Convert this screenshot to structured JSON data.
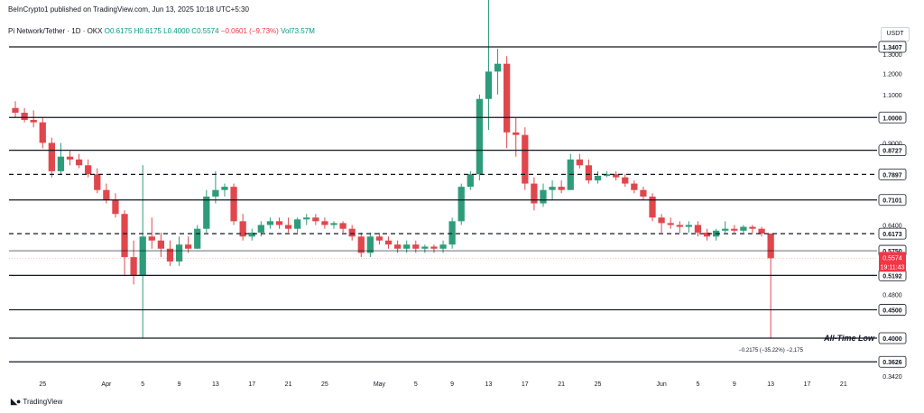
{
  "header": {
    "publisher": "BeInCrypto1 published on TradingView.com, Jun 13, 2025 10:18 UTC+5:30"
  },
  "symbol": {
    "name": "Pi Network/Tether · 1D · OKX",
    "open": "O0.6175",
    "high": "H0.6175",
    "low": "L0.4000",
    "close": "C0.5574",
    "change": "−0.0601 (−9.73%)",
    "volume": "Vol73.57M"
  },
  "currency": "USDT",
  "brand": "TradingView",
  "colors": {
    "up": "#2e9c7a",
    "down": "#e0474c",
    "level": "#131722"
  },
  "chart_data": {
    "type": "candlestick",
    "y_scale": "log",
    "ylim": [
      0.328,
      1.5
    ],
    "y_ticks": [
      "1.3000",
      "1.2000",
      "1.1000",
      "0.9000",
      "0.6400",
      "0.4800",
      "0.3420"
    ],
    "x_ticks": [
      {
        "label": "25",
        "date": "2025-03-25"
      },
      {
        "label": "Apr",
        "date": "2025-04-01"
      },
      {
        "label": "5",
        "date": "2025-04-05"
      },
      {
        "label": "9",
        "date": "2025-04-09"
      },
      {
        "label": "13",
        "date": "2025-04-13"
      },
      {
        "label": "17",
        "date": "2025-04-17"
      },
      {
        "label": "21",
        "date": "2025-04-21"
      },
      {
        "label": "25",
        "date": "2025-04-25"
      },
      {
        "label": "May",
        "date": "2025-05-01"
      },
      {
        "label": "5",
        "date": "2025-05-05"
      },
      {
        "label": "9",
        "date": "2025-05-09"
      },
      {
        "label": "13",
        "date": "2025-05-13"
      },
      {
        "label": "17",
        "date": "2025-05-17"
      },
      {
        "label": "21",
        "date": "2025-05-21"
      },
      {
        "label": "25",
        "date": "2025-05-25"
      },
      {
        "label": "Jun",
        "date": "2025-06-01"
      },
      {
        "label": "5",
        "date": "2025-06-05"
      },
      {
        "label": "9",
        "date": "2025-06-09"
      },
      {
        "label": "13",
        "date": "2025-06-13"
      },
      {
        "label": "17",
        "date": "2025-06-17"
      },
      {
        "label": "21",
        "date": "2025-06-21"
      }
    ],
    "x_range": [
      "2025-03-22",
      "2025-06-23"
    ],
    "levels": [
      {
        "price": 1.3407,
        "label": "1.3407",
        "style": "solid"
      },
      {
        "price": 1.0,
        "label": "1.0000",
        "style": "solid"
      },
      {
        "price": 0.8727,
        "label": "0.8727",
        "style": "solid"
      },
      {
        "price": 0.7897,
        "label": "0.7897",
        "style": "dashed"
      },
      {
        "price": 0.7101,
        "label": "0.7101",
        "style": "solid"
      },
      {
        "price": 0.6173,
        "label": "0.6173",
        "style": "dashed"
      },
      {
        "price": 0.575,
        "label": "0.5750",
        "style": "solid-thin"
      },
      {
        "price": 0.5192,
        "label": "0.5192",
        "style": "solid"
      },
      {
        "price": 0.45,
        "label": "0.4500",
        "style": "solid"
      },
      {
        "price": 0.4,
        "label": "0.4000",
        "style": "solid"
      },
      {
        "price": 0.3626,
        "label": "0.3626",
        "style": "solid"
      }
    ],
    "current_price": {
      "price": 0.5574,
      "label": "0.5574",
      "countdown": "19:11:43"
    },
    "annotations": {
      "atl_label": "All-Time Low",
      "measure": "−0.2175 (−35.22%) −2,175"
    },
    "candles": [
      {
        "d": "2025-03-22",
        "o": 1.04,
        "h": 1.07,
        "l": 1.0,
        "c": 1.02
      },
      {
        "d": "2025-03-23",
        "o": 1.02,
        "h": 1.04,
        "l": 0.98,
        "c": 0.99
      },
      {
        "d": "2025-03-24",
        "o": 0.99,
        "h": 1.03,
        "l": 0.96,
        "c": 0.98
      },
      {
        "d": "2025-03-25",
        "o": 0.98,
        "h": 1.0,
        "l": 0.88,
        "c": 0.9
      },
      {
        "d": "2025-03-26",
        "o": 0.9,
        "h": 0.92,
        "l": 0.78,
        "c": 0.8
      },
      {
        "d": "2025-03-27",
        "o": 0.8,
        "h": 0.9,
        "l": 0.79,
        "c": 0.85
      },
      {
        "d": "2025-03-28",
        "o": 0.85,
        "h": 0.87,
        "l": 0.82,
        "c": 0.84
      },
      {
        "d": "2025-03-29",
        "o": 0.84,
        "h": 0.86,
        "l": 0.81,
        "c": 0.82
      },
      {
        "d": "2025-03-30",
        "o": 0.82,
        "h": 0.84,
        "l": 0.78,
        "c": 0.79
      },
      {
        "d": "2025-03-31",
        "o": 0.79,
        "h": 0.81,
        "l": 0.73,
        "c": 0.74
      },
      {
        "d": "2025-04-01",
        "o": 0.74,
        "h": 0.76,
        "l": 0.7,
        "c": 0.71
      },
      {
        "d": "2025-04-02",
        "o": 0.71,
        "h": 0.73,
        "l": 0.66,
        "c": 0.67
      },
      {
        "d": "2025-04-03",
        "o": 0.67,
        "h": 0.68,
        "l": 0.52,
        "c": 0.56
      },
      {
        "d": "2025-04-04",
        "o": 0.56,
        "h": 0.6,
        "l": 0.5,
        "c": 0.52
      },
      {
        "d": "2025-04-05",
        "o": 0.52,
        "h": 0.82,
        "l": 0.4,
        "c": 0.61
      },
      {
        "d": "2025-04-06",
        "o": 0.61,
        "h": 0.66,
        "l": 0.58,
        "c": 0.6
      },
      {
        "d": "2025-04-07",
        "o": 0.6,
        "h": 0.62,
        "l": 0.56,
        "c": 0.58
      },
      {
        "d": "2025-04-08",
        "o": 0.58,
        "h": 0.6,
        "l": 0.54,
        "c": 0.55
      },
      {
        "d": "2025-04-09",
        "o": 0.55,
        "h": 0.61,
        "l": 0.54,
        "c": 0.59
      },
      {
        "d": "2025-04-10",
        "o": 0.59,
        "h": 0.61,
        "l": 0.57,
        "c": 0.58
      },
      {
        "d": "2025-04-11",
        "o": 0.58,
        "h": 0.64,
        "l": 0.58,
        "c": 0.63
      },
      {
        "d": "2025-04-12",
        "o": 0.63,
        "h": 0.74,
        "l": 0.62,
        "c": 0.72
      },
      {
        "d": "2025-04-13",
        "o": 0.72,
        "h": 0.8,
        "l": 0.7,
        "c": 0.74
      },
      {
        "d": "2025-04-14",
        "o": 0.74,
        "h": 0.76,
        "l": 0.72,
        "c": 0.75
      },
      {
        "d": "2025-04-15",
        "o": 0.75,
        "h": 0.76,
        "l": 0.64,
        "c": 0.65
      },
      {
        "d": "2025-04-16",
        "o": 0.65,
        "h": 0.67,
        "l": 0.6,
        "c": 0.61
      },
      {
        "d": "2025-04-17",
        "o": 0.61,
        "h": 0.63,
        "l": 0.6,
        "c": 0.62
      },
      {
        "d": "2025-04-18",
        "o": 0.62,
        "h": 0.65,
        "l": 0.61,
        "c": 0.64
      },
      {
        "d": "2025-04-19",
        "o": 0.64,
        "h": 0.66,
        "l": 0.63,
        "c": 0.65
      },
      {
        "d": "2025-04-20",
        "o": 0.65,
        "h": 0.66,
        "l": 0.63,
        "c": 0.64
      },
      {
        "d": "2025-04-21",
        "o": 0.64,
        "h": 0.66,
        "l": 0.62,
        "c": 0.63
      },
      {
        "d": "2025-04-22",
        "o": 0.63,
        "h": 0.66,
        "l": 0.62,
        "c": 0.655
      },
      {
        "d": "2025-04-23",
        "o": 0.655,
        "h": 0.67,
        "l": 0.64,
        "c": 0.66
      },
      {
        "d": "2025-04-24",
        "o": 0.66,
        "h": 0.67,
        "l": 0.64,
        "c": 0.65
      },
      {
        "d": "2025-04-25",
        "o": 0.65,
        "h": 0.66,
        "l": 0.63,
        "c": 0.64
      },
      {
        "d": "2025-04-26",
        "o": 0.64,
        "h": 0.65,
        "l": 0.63,
        "c": 0.645
      },
      {
        "d": "2025-04-27",
        "o": 0.645,
        "h": 0.65,
        "l": 0.62,
        "c": 0.63
      },
      {
        "d": "2025-04-28",
        "o": 0.63,
        "h": 0.64,
        "l": 0.6,
        "c": 0.61
      },
      {
        "d": "2025-04-29",
        "o": 0.61,
        "h": 0.62,
        "l": 0.56,
        "c": 0.57
      },
      {
        "d": "2025-04-30",
        "o": 0.57,
        "h": 0.62,
        "l": 0.56,
        "c": 0.61
      },
      {
        "d": "2025-05-01",
        "o": 0.61,
        "h": 0.62,
        "l": 0.59,
        "c": 0.6
      },
      {
        "d": "2025-05-02",
        "o": 0.6,
        "h": 0.61,
        "l": 0.58,
        "c": 0.59
      },
      {
        "d": "2025-05-03",
        "o": 0.59,
        "h": 0.6,
        "l": 0.57,
        "c": 0.58
      },
      {
        "d": "2025-05-04",
        "o": 0.58,
        "h": 0.6,
        "l": 0.57,
        "c": 0.59
      },
      {
        "d": "2025-05-05",
        "o": 0.59,
        "h": 0.6,
        "l": 0.57,
        "c": 0.58
      },
      {
        "d": "2025-05-06",
        "o": 0.58,
        "h": 0.59,
        "l": 0.57,
        "c": 0.585
      },
      {
        "d": "2025-05-07",
        "o": 0.585,
        "h": 0.59,
        "l": 0.57,
        "c": 0.58
      },
      {
        "d": "2025-05-08",
        "o": 0.58,
        "h": 0.6,
        "l": 0.57,
        "c": 0.59
      },
      {
        "d": "2025-05-09",
        "o": 0.59,
        "h": 0.66,
        "l": 0.58,
        "c": 0.65
      },
      {
        "d": "2025-05-10",
        "o": 0.65,
        "h": 0.76,
        "l": 0.64,
        "c": 0.75
      },
      {
        "d": "2025-05-11",
        "o": 0.75,
        "h": 0.8,
        "l": 0.74,
        "c": 0.79
      },
      {
        "d": "2025-05-12",
        "o": 0.79,
        "h": 1.1,
        "l": 0.77,
        "c": 1.08
      },
      {
        "d": "2025-05-13",
        "o": 1.08,
        "h": 1.66,
        "l": 0.95,
        "c": 1.21
      },
      {
        "d": "2025-05-14",
        "o": 1.21,
        "h": 1.33,
        "l": 1.1,
        "c": 1.25
      },
      {
        "d": "2025-05-15",
        "o": 1.25,
        "h": 1.29,
        "l": 0.88,
        "c": 0.94
      },
      {
        "d": "2025-05-16",
        "o": 0.94,
        "h": 1.0,
        "l": 0.85,
        "c": 0.93
      },
      {
        "d": "2025-05-17",
        "o": 0.93,
        "h": 0.96,
        "l": 0.74,
        "c": 0.76
      },
      {
        "d": "2025-05-18",
        "o": 0.76,
        "h": 0.78,
        "l": 0.68,
        "c": 0.7
      },
      {
        "d": "2025-05-19",
        "o": 0.7,
        "h": 0.76,
        "l": 0.69,
        "c": 0.74
      },
      {
        "d": "2025-05-20",
        "o": 0.74,
        "h": 0.77,
        "l": 0.71,
        "c": 0.75
      },
      {
        "d": "2025-05-21",
        "o": 0.75,
        "h": 0.77,
        "l": 0.73,
        "c": 0.74
      },
      {
        "d": "2025-05-22",
        "o": 0.74,
        "h": 0.86,
        "l": 0.74,
        "c": 0.84
      },
      {
        "d": "2025-05-23",
        "o": 0.84,
        "h": 0.86,
        "l": 0.81,
        "c": 0.82
      },
      {
        "d": "2025-05-24",
        "o": 0.82,
        "h": 0.84,
        "l": 0.76,
        "c": 0.77
      },
      {
        "d": "2025-05-25",
        "o": 0.77,
        "h": 0.8,
        "l": 0.76,
        "c": 0.785
      },
      {
        "d": "2025-05-26",
        "o": 0.785,
        "h": 0.8,
        "l": 0.78,
        "c": 0.79
      },
      {
        "d": "2025-05-27",
        "o": 0.79,
        "h": 0.8,
        "l": 0.77,
        "c": 0.78
      },
      {
        "d": "2025-05-28",
        "o": 0.78,
        "h": 0.79,
        "l": 0.75,
        "c": 0.76
      },
      {
        "d": "2025-05-29",
        "o": 0.76,
        "h": 0.77,
        "l": 0.73,
        "c": 0.74
      },
      {
        "d": "2025-05-30",
        "o": 0.74,
        "h": 0.75,
        "l": 0.71,
        "c": 0.72
      },
      {
        "d": "2025-05-31",
        "o": 0.72,
        "h": 0.73,
        "l": 0.65,
        "c": 0.66
      },
      {
        "d": "2025-06-01",
        "o": 0.66,
        "h": 0.67,
        "l": 0.62,
        "c": 0.645
      },
      {
        "d": "2025-06-02",
        "o": 0.645,
        "h": 0.66,
        "l": 0.63,
        "c": 0.64
      },
      {
        "d": "2025-06-03",
        "o": 0.64,
        "h": 0.65,
        "l": 0.62,
        "c": 0.635
      },
      {
        "d": "2025-06-04",
        "o": 0.635,
        "h": 0.65,
        "l": 0.62,
        "c": 0.64
      },
      {
        "d": "2025-06-05",
        "o": 0.64,
        "h": 0.65,
        "l": 0.61,
        "c": 0.62
      },
      {
        "d": "2025-06-06",
        "o": 0.62,
        "h": 0.63,
        "l": 0.6,
        "c": 0.61
      },
      {
        "d": "2025-06-07",
        "o": 0.61,
        "h": 0.63,
        "l": 0.6,
        "c": 0.625
      },
      {
        "d": "2025-06-08",
        "o": 0.625,
        "h": 0.65,
        "l": 0.62,
        "c": 0.63
      },
      {
        "d": "2025-06-09",
        "o": 0.63,
        "h": 0.64,
        "l": 0.62,
        "c": 0.625
      },
      {
        "d": "2025-06-10",
        "o": 0.625,
        "h": 0.64,
        "l": 0.62,
        "c": 0.635
      },
      {
        "d": "2025-06-11",
        "o": 0.635,
        "h": 0.64,
        "l": 0.62,
        "c": 0.63
      },
      {
        "d": "2025-06-12",
        "o": 0.63,
        "h": 0.635,
        "l": 0.61,
        "c": 0.6175
      },
      {
        "d": "2025-06-13",
        "o": 0.6175,
        "h": 0.6175,
        "l": 0.4,
        "c": 0.5574
      }
    ]
  }
}
